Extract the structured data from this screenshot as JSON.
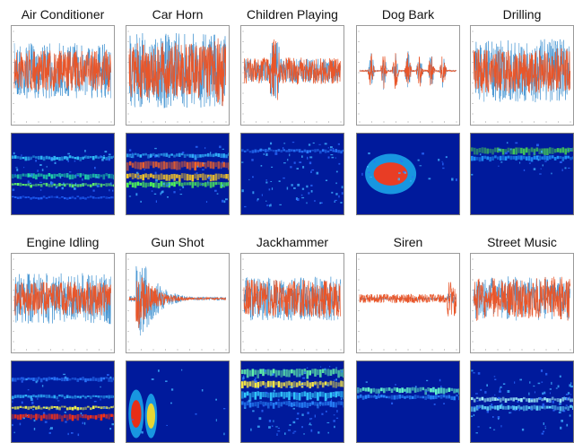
{
  "panels": [
    {
      "title": "Air Conditioner"
    },
    {
      "title": "Car Horn"
    },
    {
      "title": "Children Playing"
    },
    {
      "title": "Dog Bark"
    },
    {
      "title": "Drilling"
    },
    {
      "title": "Engine Idling"
    },
    {
      "title": "Gun Shot"
    },
    {
      "title": "Jackhammer"
    },
    {
      "title": "Siren"
    },
    {
      "title": "Street Music"
    }
  ],
  "colors": {
    "waveform_primary": "#e8562a",
    "waveform_secondary": "#3a8fd0",
    "spectrogram_background": "#001a9c"
  }
}
